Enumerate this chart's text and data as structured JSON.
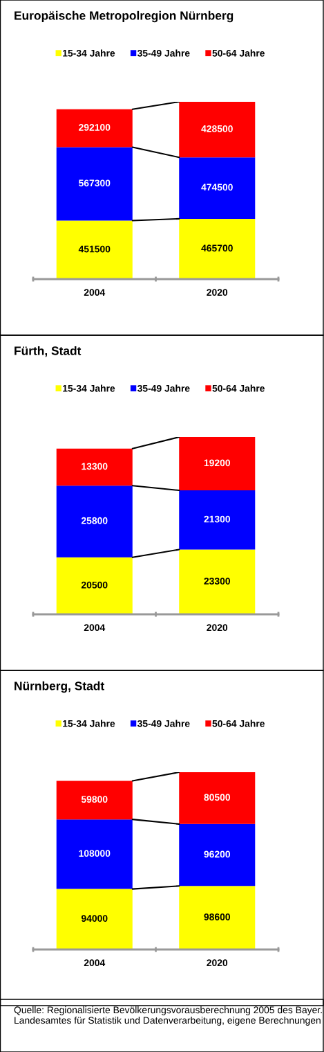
{
  "chart_data": [
    {
      "type": "bar",
      "title": "Europäische Metropolregion Nürnberg",
      "categories": [
        "2004",
        "2020"
      ],
      "stacked": true,
      "data_labels": true,
      "legend": "top",
      "tick_labels": "x",
      "grid": false,
      "series": [
        {
          "name": "15-34 Jahre",
          "color": "#ffff00",
          "values": [
            451500,
            465700
          ]
        },
        {
          "name": "35-49 Jahre",
          "color": "#0000ff",
          "values": [
            567300,
            474500
          ]
        },
        {
          "name": "50-64 Jahre",
          "color": "#ff0000",
          "values": [
            292100,
            428500
          ]
        }
      ]
    },
    {
      "type": "bar",
      "title": "Fürth, Stadt",
      "categories": [
        "2004",
        "2020"
      ],
      "stacked": true,
      "data_labels": true,
      "legend": "top",
      "tick_labels": "x",
      "grid": false,
      "series": [
        {
          "name": "15-34 Jahre",
          "color": "#ffff00",
          "values": [
            20500,
            23300
          ]
        },
        {
          "name": "35-49 Jahre",
          "color": "#0000ff",
          "values": [
            25800,
            21300
          ]
        },
        {
          "name": "50-64 Jahre",
          "color": "#ff0000",
          "values": [
            13300,
            19200
          ]
        }
      ]
    },
    {
      "type": "bar",
      "title": "Nürnberg, Stadt",
      "categories": [
        "2004",
        "2020"
      ],
      "stacked": true,
      "data_labels": true,
      "legend": "top",
      "tick_labels": "x",
      "grid": false,
      "annotations": [
        "Quelle: Regionalisierte Bevölkerungsvorausberechnung 2005 des Bayer. Landesamtes für Statistik und Datenverarbeitung, eigene Berechnungen"
      ],
      "series": [
        {
          "name": "15-34 Jahre",
          "color": "#ffff00",
          "values": [
            94000,
            98600
          ]
        },
        {
          "name": "35-49 Jahre",
          "color": "#0000ff",
          "values": [
            108000,
            96200
          ]
        },
        {
          "name": "50-64 Jahre",
          "color": "#ff0000",
          "values": [
            59800,
            80500
          ]
        }
      ]
    }
  ]
}
